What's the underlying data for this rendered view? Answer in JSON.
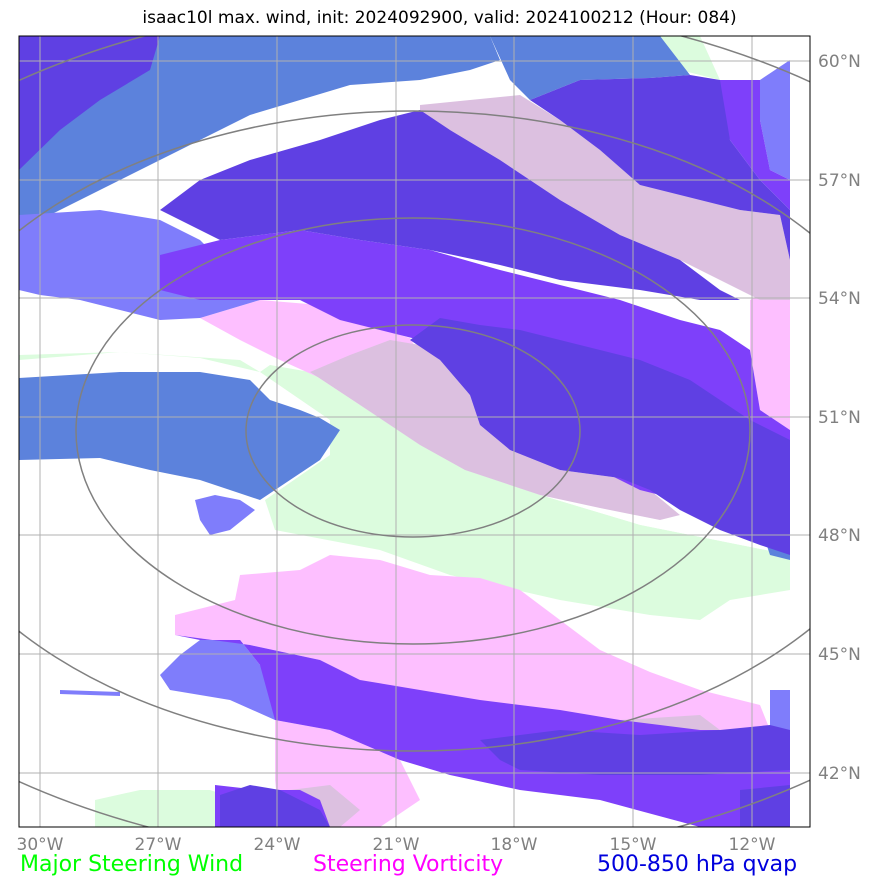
{
  "title": "isaac10l max. wind, init: 2024092900, valid: 2024100212 (Hour: 084)",
  "lon_ticks": [
    "30°W",
    "27°W",
    "24°W",
    "21°W",
    "18°W",
    "15°W",
    "12°W"
  ],
  "lat_ticks": [
    "60°N",
    "57°N",
    "54°N",
    "51°N",
    "48°N",
    "45°N",
    "42°N"
  ],
  "legend": [
    {
      "label": "Major Steering Wind",
      "color": "#00ff00"
    },
    {
      "label": "Steering Vorticity",
      "color": "#ff00ff"
    },
    {
      "label": "500-850 hPa qvap",
      "color": "#0000dd"
    }
  ],
  "colors": {
    "light_green": "#dcfcde",
    "light_pink": "#fdbfff",
    "mauve": "#dcc0e0",
    "steel_blue": "#5c82dc",
    "periwinkle": "#7f7dfb",
    "violet": "#7e40fa",
    "indigo": "#5f40e3",
    "grid": "#b0b0b0",
    "range_ring": "#808080"
  }
}
